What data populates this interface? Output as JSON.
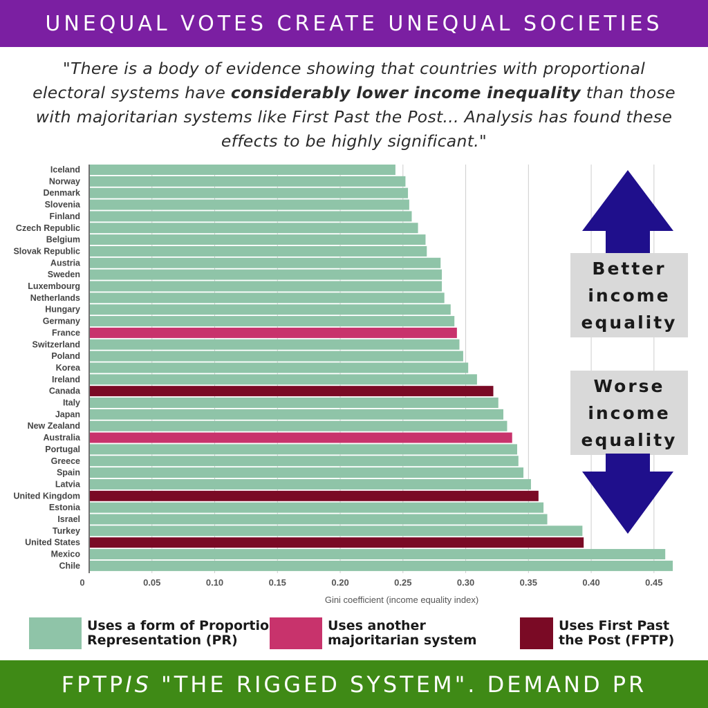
{
  "banner": {
    "title": "UNEQUAL VOTES CREATE UNEQUAL SOCIETIES"
  },
  "quote": {
    "part1": "\"There is a body of evidence showing that countries with proportional electoral systems have ",
    "bold": "considerably lower income inequality",
    "part2": " than those with majoritarian systems like First Past the Post... Analysis has found these effects to be highly significant.\""
  },
  "side_labels": {
    "better": [
      "Better",
      "income",
      "equality"
    ],
    "worse": [
      "Worse",
      "income",
      "equality"
    ]
  },
  "legend": [
    {
      "label": "Uses a form of Proportional Representation (PR)",
      "color": "#8fc4a8"
    },
    {
      "label": "Uses another majoritarian system",
      "color": "#c8336c"
    },
    {
      "label": "Uses First Past the Post (FPTP)",
      "color": "#7a0a25"
    }
  ],
  "footer": {
    "text": "FPTP IS \"THE RIGGED SYSTEM\". DEMAND PR",
    "emphasis": "IS"
  },
  "colors": {
    "pr": "#8fc4a8",
    "majoritarian": "#c8336c",
    "fptp": "#7a0a25",
    "arrow": "#1f0f8c",
    "top_banner": "#7b1fa2",
    "bottom_banner": "#3f8a16"
  },
  "chart_data": {
    "type": "bar",
    "orientation": "horizontal",
    "xlabel": "Gini coefficient (income equality index)",
    "xlim": [
      0,
      0.47
    ],
    "xticks": [
      "0",
      "0.05",
      "0.10",
      "0.15",
      "0.20",
      "0.25",
      "0.30",
      "0.35",
      "0.40",
      "0.45"
    ],
    "grid": true,
    "categories": [
      "Iceland",
      "Norway",
      "Denmark",
      "Slovenia",
      "Finland",
      "Czech Republic",
      "Belgium",
      "Slovak Republic",
      "Austria",
      "Sweden",
      "Luxembourg",
      "Netherlands",
      "Hungary",
      "Germany",
      "France",
      "Switzerland",
      "Poland",
      "Korea",
      "Ireland",
      "Canada",
      "Italy",
      "Japan",
      "New Zealand",
      "Australia",
      "Portugal",
      "Greece",
      "Spain",
      "Latvia",
      "United Kingdom",
      "Estonia",
      "Israel",
      "Turkey",
      "United States",
      "Mexico",
      "Chile"
    ],
    "values": [
      0.244,
      0.252,
      0.254,
      0.255,
      0.257,
      0.262,
      0.268,
      0.269,
      0.28,
      0.281,
      0.281,
      0.283,
      0.288,
      0.291,
      0.293,
      0.295,
      0.298,
      0.302,
      0.309,
      0.322,
      0.326,
      0.33,
      0.333,
      0.337,
      0.341,
      0.342,
      0.346,
      0.352,
      0.358,
      0.362,
      0.365,
      0.393,
      0.394,
      0.459,
      0.465
    ],
    "groups": [
      "pr",
      "pr",
      "pr",
      "pr",
      "pr",
      "pr",
      "pr",
      "pr",
      "pr",
      "pr",
      "pr",
      "pr",
      "pr",
      "pr",
      "majoritarian",
      "pr",
      "pr",
      "pr",
      "pr",
      "fptp",
      "pr",
      "pr",
      "pr",
      "majoritarian",
      "pr",
      "pr",
      "pr",
      "pr",
      "fptp",
      "pr",
      "pr",
      "pr",
      "fptp",
      "pr",
      "pr"
    ]
  }
}
